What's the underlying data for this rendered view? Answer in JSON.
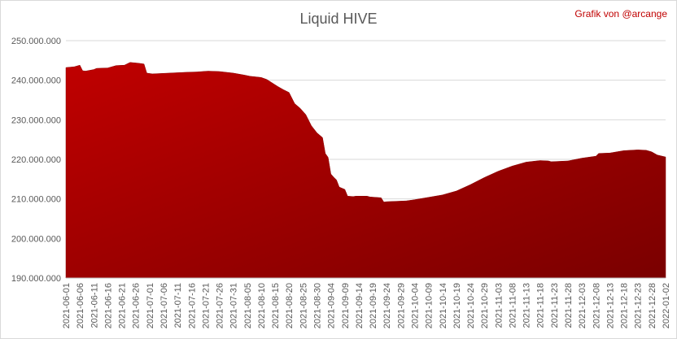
{
  "chart_data": {
    "type": "area",
    "title": "Liquid HIVE",
    "credit": "Grafik von @arcange",
    "xlabel": "",
    "ylabel": "",
    "ylim": [
      190000000,
      250000000
    ],
    "grid": true,
    "legend": "none",
    "colors": {
      "fill_top": "#c00000",
      "fill_bottom": "#7a0000"
    },
    "y_ticks": [
      "190.000.000",
      "200.000.000",
      "210.000.000",
      "220.000.000",
      "230.000.000",
      "240.000.000",
      "250.000.000"
    ],
    "x_ticks": [
      "2021-06-01",
      "2021-06-06",
      "2021-06-11",
      "2021-06-16",
      "2021-06-21",
      "2021-06-26",
      "2021-07-01",
      "2021-07-06",
      "2021-07-11",
      "2021-07-16",
      "2021-07-21",
      "2021-07-26",
      "2021-07-31",
      "2021-08-05",
      "2021-08-10",
      "2021-08-15",
      "2021-08-20",
      "2021-08-25",
      "2021-08-30",
      "2021-09-04",
      "2021-09-09",
      "2021-09-14",
      "2021-09-19",
      "2021-09-24",
      "2021-09-29",
      "2021-10-04",
      "2021-10-09",
      "2021-10-14",
      "2021-10-19",
      "2021-10-24",
      "2021-10-29",
      "2021-11-03",
      "2021-11-08",
      "2021-11-13",
      "2021-11-18",
      "2021-11-23",
      "2021-11-28",
      "2021-12-03",
      "2021-12-08",
      "2021-12-13",
      "2021-12-18",
      "2021-12-23",
      "2021-12-28",
      "2022-01-02"
    ],
    "series": [
      {
        "x": [
          "2021-06-01",
          "2021-06-04",
          "2021-06-05",
          "2021-06-06",
          "2021-06-07",
          "2021-06-08",
          "2021-06-11",
          "2021-06-12",
          "2021-06-16",
          "2021-06-18",
          "2021-06-19",
          "2021-06-22",
          "2021-06-24",
          "2021-06-27",
          "2021-06-29",
          "2021-06-30",
          "2021-07-02",
          "2021-07-05",
          "2021-07-08",
          "2021-07-14",
          "2021-07-18",
          "2021-07-22",
          "2021-07-26",
          "2021-07-31",
          "2021-08-04",
          "2021-08-06",
          "2021-08-10",
          "2021-08-12",
          "2021-08-16",
          "2021-08-18",
          "2021-08-20",
          "2021-08-22",
          "2021-08-24",
          "2021-08-26",
          "2021-08-28",
          "2021-08-30",
          "2021-09-01",
          "2021-09-02",
          "2021-09-03",
          "2021-09-04",
          "2021-09-05",
          "2021-09-06",
          "2021-09-07",
          "2021-09-09",
          "2021-09-10",
          "2021-09-12",
          "2021-09-13",
          "2021-09-17",
          "2021-09-18",
          "2021-09-22",
          "2021-09-23",
          "2021-09-24",
          "2021-10-01",
          "2021-10-04",
          "2021-10-09",
          "2021-10-14",
          "2021-10-19",
          "2021-10-24",
          "2021-10-29",
          "2021-11-03",
          "2021-11-08",
          "2021-11-13",
          "2021-11-18",
          "2021-11-21",
          "2021-11-22",
          "2021-11-28",
          "2021-12-03",
          "2021-12-08",
          "2021-12-09",
          "2021-12-13",
          "2021-12-18",
          "2021-12-23",
          "2021-12-26",
          "2021-12-28",
          "2021-12-30",
          "2022-01-02"
        ],
        "values": [
          243200000,
          243400000,
          243600000,
          243800000,
          242400000,
          242300000,
          242700000,
          243000000,
          243100000,
          243500000,
          243700000,
          243800000,
          244500000,
          244300000,
          244100000,
          241800000,
          241600000,
          241700000,
          241800000,
          242000000,
          242100000,
          242300000,
          242200000,
          241800000,
          241300000,
          241000000,
          240700000,
          240200000,
          238400000,
          237600000,
          236900000,
          234100000,
          232900000,
          231300000,
          228500000,
          226700000,
          225500000,
          221500000,
          220500000,
          216300000,
          215500000,
          214800000,
          213000000,
          212400000,
          210700000,
          210600000,
          210700000,
          210700000,
          210500000,
          210300000,
          209200000,
          209300000,
          209500000,
          209800000,
          210400000,
          211000000,
          212000000,
          213600000,
          215400000,
          217000000,
          218300000,
          219300000,
          219700000,
          219600000,
          219400000,
          219600000,
          220300000,
          220800000,
          221500000,
          221600000,
          222200000,
          222400000,
          222300000,
          221900000,
          221100000,
          220600000
        ]
      }
    ]
  }
}
